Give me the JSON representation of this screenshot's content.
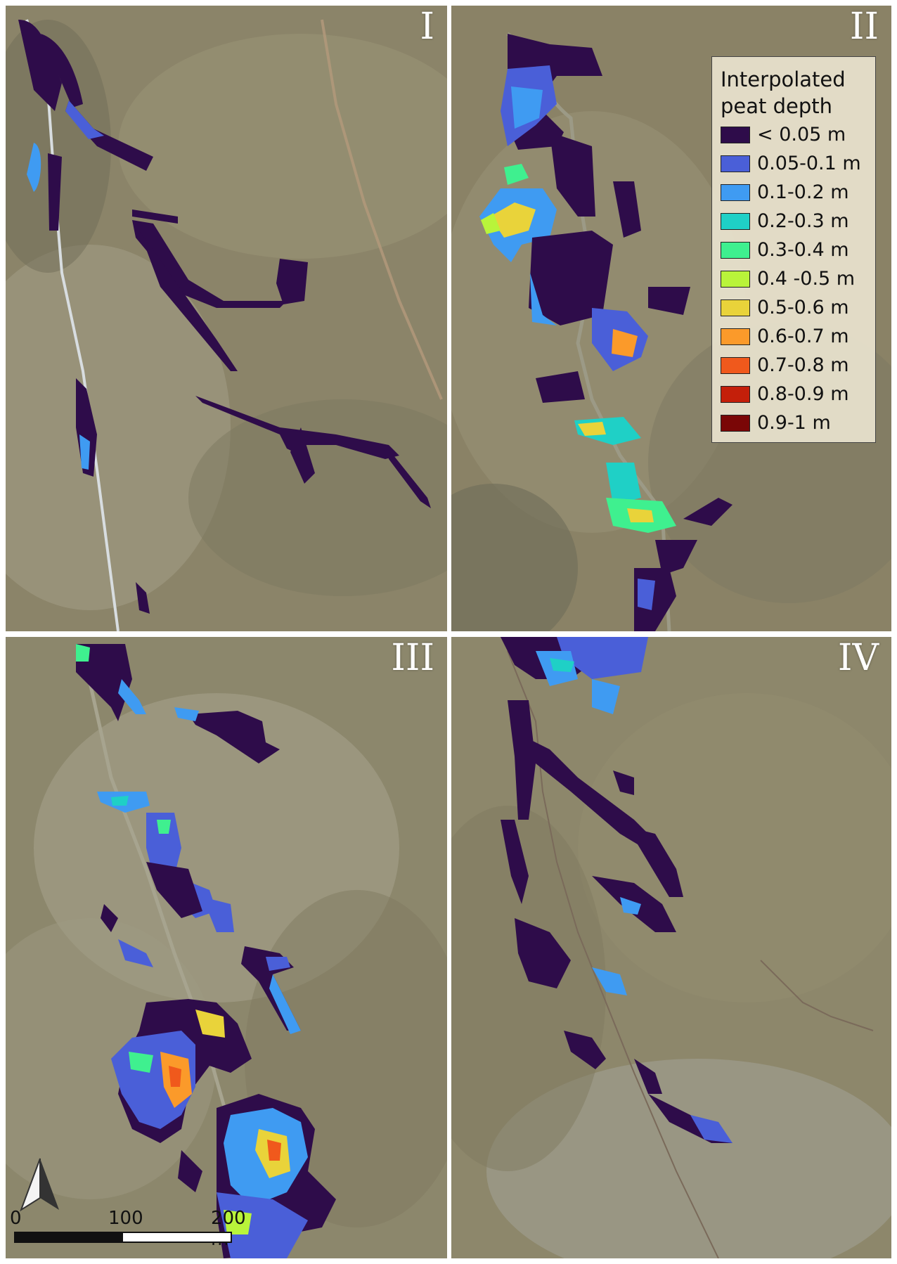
{
  "panels": [
    {
      "id": "I",
      "label": "I"
    },
    {
      "id": "II",
      "label": "II"
    },
    {
      "id": "III",
      "label": "III"
    },
    {
      "id": "IV",
      "label": "IV"
    }
  ],
  "legend": {
    "title_line1": "Interpolated",
    "title_line2": "peat depth",
    "classes": [
      {
        "label": "< 0.05 m",
        "color": "#2e0c4a"
      },
      {
        "label": "0.05-0.1 m",
        "color": "#4a5fd8"
      },
      {
        "label": "0.1-0.2 m",
        "color": "#3f9bf2"
      },
      {
        "label": "0.2-0.3 m",
        "color": "#1fd0c6"
      },
      {
        "label": "0.3-0.4 m",
        "color": "#3ff08f"
      },
      {
        "label": "0.4 -0.5 m",
        "color": "#b9f43a"
      },
      {
        "label": "0.5-0.6 m",
        "color": "#e9d33a"
      },
      {
        "label": "0.6-0.7 m",
        "color": "#fb9a2a"
      },
      {
        "label": "0.7-0.8 m",
        "color": "#f0591c"
      },
      {
        "label": "0.8-0.9 m",
        "color": "#c41f0a"
      },
      {
        "label": "0.9-1 m",
        "color": "#7a0606"
      }
    ]
  },
  "scale_bar": {
    "tick0": "0",
    "tick1": "100",
    "tick2": "200 m"
  },
  "colors": {
    "imagery": "#8a8468",
    "divider": "#ffffff"
  },
  "icons": {
    "north_arrow": "north-arrow-icon"
  }
}
